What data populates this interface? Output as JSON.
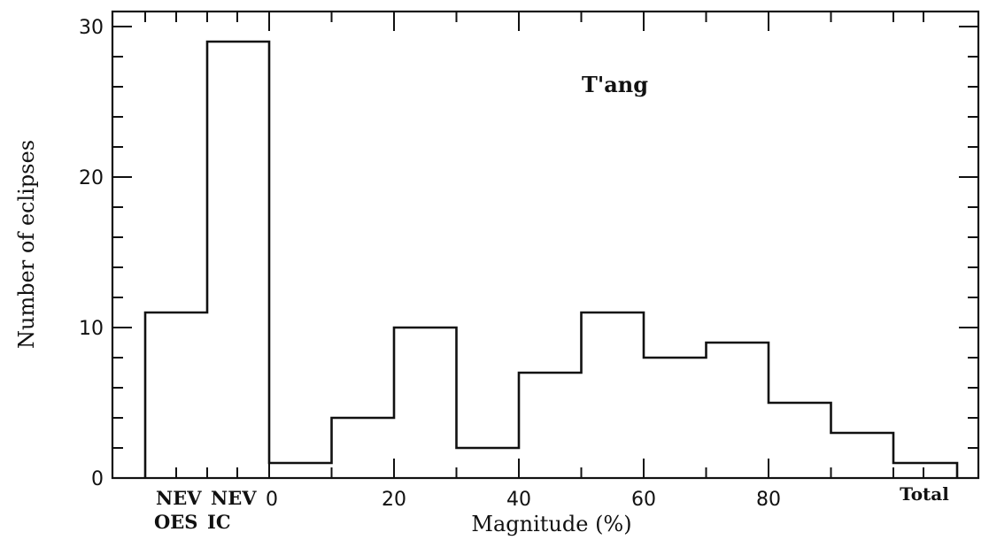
{
  "chart_data": {
    "type": "bar",
    "title": "",
    "annotation": "T'ang",
    "xlabel": "Magnitude (%)",
    "ylabel": "Number of eclipses",
    "ylim": [
      0,
      31
    ],
    "y_ticks": [
      0,
      10,
      20,
      30
    ],
    "x_ticks": [
      0,
      20,
      40,
      60,
      80
    ],
    "special_categories": [
      {
        "top": "NEV",
        "bottom": "OES",
        "value": 11
      },
      {
        "top": "NEV",
        "bottom": "IC",
        "value": 29
      }
    ],
    "bins": [
      {
        "from": 0,
        "to": 10,
        "value": 1
      },
      {
        "from": 10,
        "to": 20,
        "value": 4
      },
      {
        "from": 20,
        "to": 30,
        "value": 10
      },
      {
        "from": 30,
        "to": 40,
        "value": 2
      },
      {
        "from": 40,
        "to": 50,
        "value": 7
      },
      {
        "from": 50,
        "to": 60,
        "value": 11
      },
      {
        "from": 60,
        "to": 70,
        "value": 8
      },
      {
        "from": 70,
        "to": 80,
        "value": 9
      },
      {
        "from": 80,
        "to": 90,
        "value": 5
      },
      {
        "from": 90,
        "to": 100,
        "value": 3
      }
    ],
    "total_category": {
      "label": "Total",
      "value": 1
    },
    "grid": false,
    "legend": "none"
  }
}
